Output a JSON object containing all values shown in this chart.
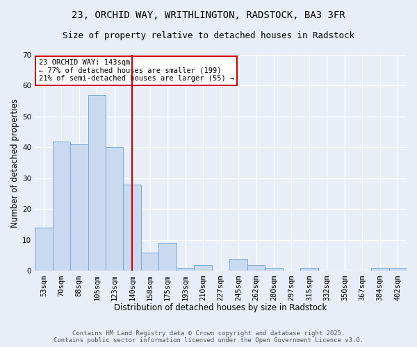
{
  "title1": "23, ORCHID WAY, WRITHLINGTON, RADSTOCK, BA3 3FR",
  "title2": "Size of property relative to detached houses in Radstock",
  "xlabel": "Distribution of detached houses by size in Radstock",
  "ylabel": "Number of detached properties",
  "bar_labels": [
    "53sqm",
    "70sqm",
    "88sqm",
    "105sqm",
    "123sqm",
    "140sqm",
    "158sqm",
    "175sqm",
    "193sqm",
    "210sqm",
    "227sqm",
    "245sqm",
    "262sqm",
    "280sqm",
    "297sqm",
    "315sqm",
    "332sqm",
    "350sqm",
    "367sqm",
    "384sqm",
    "402sqm"
  ],
  "bar_values": [
    14,
    42,
    41,
    57,
    40,
    28,
    6,
    9,
    1,
    2,
    0,
    4,
    2,
    1,
    0,
    1,
    0,
    0,
    0,
    1,
    1
  ],
  "bar_color": "#c9d9f0",
  "bar_edge_color": "#7aaad4",
  "vertical_line_x": 5,
  "vertical_line_color": "#cc0000",
  "annotation_text": "23 ORCHID WAY: 143sqm\n← 77% of detached houses are smaller (199)\n21% of semi-detached houses are larger (55) →",
  "annotation_box_color": "#ffffff",
  "annotation_box_edge_color": "#cc0000",
  "ylim": [
    0,
    70
  ],
  "yticks": [
    0,
    10,
    20,
    30,
    40,
    50,
    60,
    70
  ],
  "footer1": "Contains HM Land Registry data © Crown copyright and database right 2025.",
  "footer2": "Contains public sector information licensed under the Open Government Licence v3.0.",
  "background_color": "#e8eef8",
  "grid_color": "#ffffff",
  "title_fontsize": 10,
  "subtitle_fontsize": 9,
  "axis_label_fontsize": 8.5,
  "tick_fontsize": 7.5,
  "annotation_fontsize": 7.5,
  "footer_fontsize": 6.5
}
